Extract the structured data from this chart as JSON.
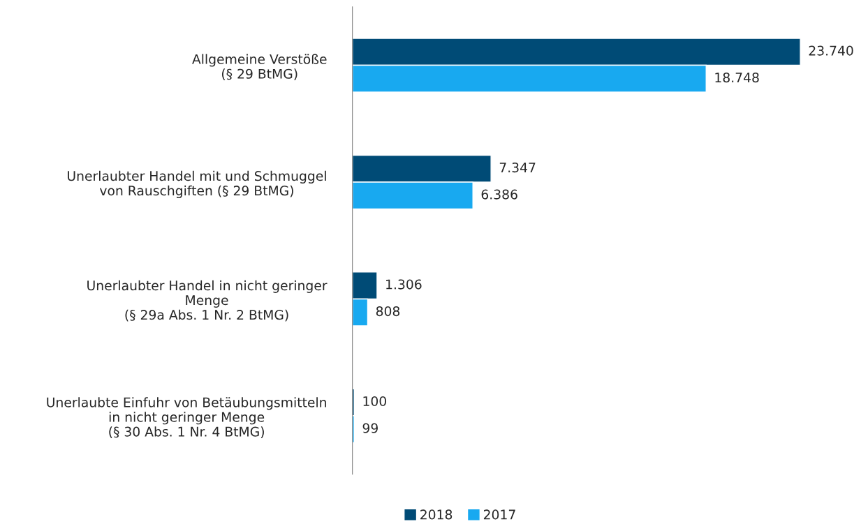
{
  "chart_data": {
    "type": "bar",
    "orientation": "horizontal",
    "categories": [
      "Allgemeine Verstöße\n(§ 29 BtMG)",
      "Unerlaubter Handel mit und Schmuggel\nvon Rauschgiften (§ 29 BtMG)",
      "Unerlaubter Handel in nicht geringer\nMenge\n(§ 29a Abs. 1 Nr. 2 BtMG)",
      "Unerlaubte Einfuhr von Betäubungsmitteln\nin nicht geringer Menge\n(§ 30 Abs. 1 Nr. 4 BtMG)"
    ],
    "series": [
      {
        "name": "2018",
        "color": "#004b76",
        "values": [
          23740,
          7347,
          1306,
          100
        ],
        "value_labels": [
          "23.740",
          "7.347",
          "1.306",
          "100"
        ]
      },
      {
        "name": "2017",
        "color": "#18a9f0",
        "values": [
          18748,
          6386,
          808,
          99
        ],
        "value_labels": [
          "18.748",
          "6.386",
          "808",
          "99"
        ]
      }
    ],
    "legend": "bottom",
    "grid": false,
    "tick_labels": "y"
  }
}
